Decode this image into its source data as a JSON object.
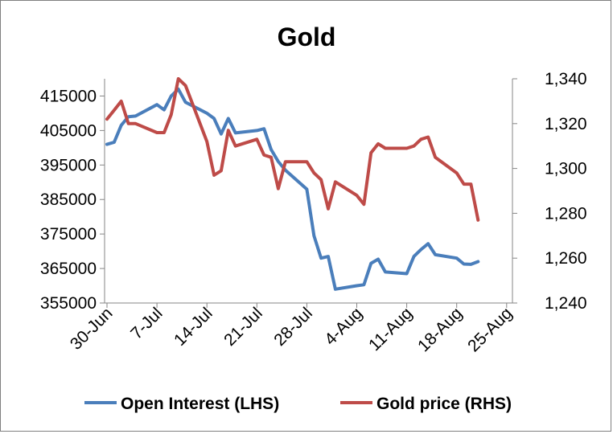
{
  "chart_data": {
    "type": "line",
    "title": "Gold",
    "x_ticks": [
      "30-Jun",
      "7-Jul",
      "14-Jul",
      "21-Jul",
      "28-Jul",
      "4-Aug",
      "11-Aug",
      "18-Aug",
      "25-Aug"
    ],
    "y_left": {
      "ticks": [
        "415000",
        "405000",
        "395000",
        "385000",
        "375000",
        "365000",
        "355000"
      ],
      "lim": [
        355000,
        420000
      ]
    },
    "y_right": {
      "ticks": [
        "1,340",
        "1,320",
        "1,300",
        "1,280",
        "1,260",
        "1,240"
      ],
      "lim": [
        1240,
        1340
      ]
    },
    "grid": false,
    "legend_position": "bottom",
    "series": [
      {
        "name": "Open Interest (LHS)",
        "axis": "left",
        "color": "#4a7ebb",
        "points": [
          [
            "30-Jun",
            401000
          ],
          [
            "1-Jul",
            401600
          ],
          [
            "2-Jul",
            406500
          ],
          [
            "3-Jul",
            409000
          ],
          [
            "4-Jul",
            409200
          ],
          [
            "7-Jul",
            412500
          ],
          [
            "8-Jul",
            411000
          ],
          [
            "9-Jul",
            415000
          ],
          [
            "10-Jul",
            417000
          ],
          [
            "11-Jul",
            413200
          ],
          [
            "14-Jul",
            410000
          ],
          [
            "15-Jul",
            408500
          ],
          [
            "16-Jul",
            404000
          ],
          [
            "17-Jul",
            408500
          ],
          [
            "18-Jul",
            404300
          ],
          [
            "21-Jul",
            405000
          ],
          [
            "22-Jul",
            405500
          ],
          [
            "23-Jul",
            399500
          ],
          [
            "24-Jul",
            396000
          ],
          [
            "25-Jul",
            393500
          ],
          [
            "28-Jul",
            388000
          ],
          [
            "29-Jul",
            374500
          ],
          [
            "30-Jul",
            368000
          ],
          [
            "31-Jul",
            368500
          ],
          [
            "1-Aug",
            359000
          ],
          [
            "4-Aug",
            360000
          ],
          [
            "5-Aug",
            360300
          ],
          [
            "6-Aug",
            366500
          ],
          [
            "7-Aug",
            367700
          ],
          [
            "8-Aug",
            364000
          ],
          [
            "11-Aug",
            363500
          ],
          [
            "12-Aug",
            368500
          ],
          [
            "13-Aug",
            370500
          ],
          [
            "14-Aug",
            372200
          ],
          [
            "15-Aug",
            369000
          ],
          [
            "18-Aug",
            368000
          ],
          [
            "19-Aug",
            366300
          ],
          [
            "20-Aug",
            366200
          ],
          [
            "21-Aug",
            367000
          ]
        ]
      },
      {
        "name": "Gold price (RHS)",
        "axis": "right",
        "color": "#be4b48",
        "points": [
          [
            "30-Jun",
            1322
          ],
          [
            "1-Jul",
            1326
          ],
          [
            "2-Jul",
            1330
          ],
          [
            "3-Jul",
            1320
          ],
          [
            "4-Jul",
            1320
          ],
          [
            "7-Jul",
            1316
          ],
          [
            "8-Jul",
            1316
          ],
          [
            "9-Jul",
            1324
          ],
          [
            "10-Jul",
            1340
          ],
          [
            "11-Jul",
            1337
          ],
          [
            "14-Jul",
            1312
          ],
          [
            "15-Jul",
            1297
          ],
          [
            "16-Jul",
            1299
          ],
          [
            "17-Jul",
            1317
          ],
          [
            "18-Jul",
            1310
          ],
          [
            "21-Jul",
            1313
          ],
          [
            "22-Jul",
            1306
          ],
          [
            "23-Jul",
            1305
          ],
          [
            "24-Jul",
            1291
          ],
          [
            "25-Jul",
            1303
          ],
          [
            "28-Jul",
            1303
          ],
          [
            "29-Jul",
            1298
          ],
          [
            "30-Jul",
            1295
          ],
          [
            "31-Jul",
            1282
          ],
          [
            "1-Aug",
            1294
          ],
          [
            "4-Aug",
            1288
          ],
          [
            "5-Aug",
            1284
          ],
          [
            "6-Aug",
            1307
          ],
          [
            "7-Aug",
            1311
          ],
          [
            "8-Aug",
            1309
          ],
          [
            "11-Aug",
            1309
          ],
          [
            "12-Aug",
            1310
          ],
          [
            "13-Aug",
            1313
          ],
          [
            "14-Aug",
            1314
          ],
          [
            "15-Aug",
            1305
          ],
          [
            "18-Aug",
            1298
          ],
          [
            "19-Aug",
            1293
          ],
          [
            "20-Aug",
            1293
          ],
          [
            "21-Aug",
            1277
          ]
        ]
      }
    ]
  }
}
